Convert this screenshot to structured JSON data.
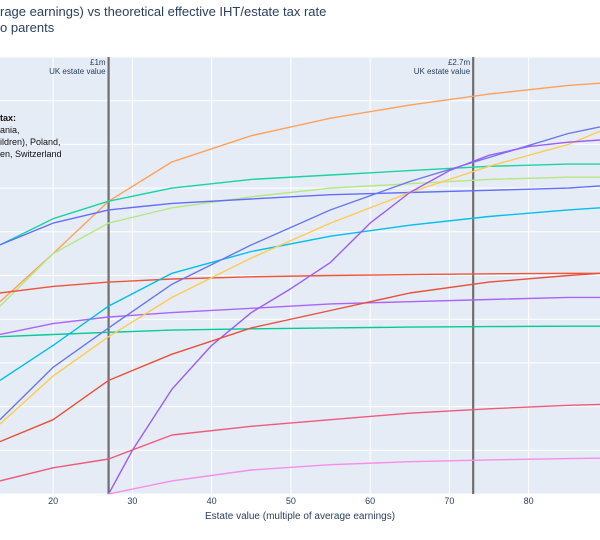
{
  "header": {
    "title_line1": "rage earnings) vs theoretical effective IHT/estate tax rate",
    "title_line2": "o parents"
  },
  "note": {
    "heading": "tax:",
    "line1": "ania,",
    "line2": "ildren), Poland,",
    "line3": "en, Switzerland"
  },
  "chart_data": {
    "type": "line",
    "xlabel": "Estate value (multiple of average earnings)",
    "ylabel": "",
    "xlim": [
      13.3,
      89
    ],
    "ylim": [
      0,
      100
    ],
    "x_ticks": [
      20,
      30,
      40,
      50,
      60,
      70,
      80
    ],
    "grid": true,
    "plot_bg": "#e5ecf6",
    "reference_lines": [
      {
        "x": 27,
        "label_line1": "£1m",
        "label_line2": "UK estate value",
        "color": "#6e6e6e"
      },
      {
        "x": 73,
        "label_line1": "£2.7m",
        "label_line2": "UK estate value",
        "color": "#6e6e6e"
      }
    ],
    "series": [
      {
        "color": "#ffa15a",
        "x": [
          13.3,
          20,
          27,
          35,
          45,
          55,
          65,
          75,
          85,
          89
        ],
        "values": [
          44,
          55,
          67,
          76,
          82,
          86,
          89,
          91.5,
          93.5,
          94
        ]
      },
      {
        "color": "#19d3a2",
        "x": [
          13.3,
          20,
          27,
          35,
          45,
          55,
          65,
          75,
          85,
          89
        ],
        "values": [
          57,
          63,
          67,
          70,
          72,
          73,
          74,
          75,
          75.5,
          75.5
        ]
      },
      {
        "color": "#b6e880",
        "x": [
          13.3,
          20,
          27,
          35,
          45,
          55,
          65,
          75,
          85,
          89
        ],
        "values": [
          43,
          55,
          62,
          65.5,
          68,
          70,
          71,
          72,
          72.5,
          72.5
        ]
      },
      {
        "color": "#636efa",
        "x": [
          13.3,
          20,
          27,
          35,
          45,
          55,
          65,
          75,
          85,
          89
        ],
        "values": [
          57,
          62,
          65,
          66.5,
          67.5,
          68.5,
          69,
          69.5,
          70,
          70.5
        ]
      },
      {
        "color": "#00cc96",
        "x": [
          13.3,
          20,
          27,
          35,
          45,
          55,
          65,
          75,
          85,
          89
        ],
        "values": [
          36,
          36.5,
          37,
          37.5,
          37.8,
          38,
          38.2,
          38.3,
          38.4,
          38.4
        ]
      },
      {
        "color": "#ef553b",
        "x": [
          13.3,
          20,
          27,
          35,
          45,
          55,
          65,
          75,
          85,
          89
        ],
        "values": [
          46,
          47.5,
          48.5,
          49.2,
          49.7,
          50,
          50.2,
          50.4,
          50.5,
          50.5
        ]
      },
      {
        "color": "#ab63fa",
        "x": [
          13.3,
          20,
          27,
          35,
          45,
          55,
          65,
          75,
          85,
          89
        ],
        "values": [
          36.5,
          39,
          40.5,
          41.5,
          42.5,
          43.5,
          44,
          44.5,
          45,
          45
        ]
      },
      {
        "color": "#00bfe8",
        "x": [
          13.3,
          20,
          27,
          35,
          45,
          55,
          65,
          75,
          85,
          89
        ],
        "values": [
          26,
          34,
          43,
          50.5,
          55.5,
          59,
          61.5,
          63.5,
          65,
          65.5
        ]
      },
      {
        "color": "#fecb52",
        "x": [
          13.3,
          20,
          27,
          35,
          45,
          55,
          65,
          75,
          85,
          89
        ],
        "values": [
          16,
          27,
          36,
          45,
          54,
          62,
          69,
          75,
          80,
          83
        ]
      },
      {
        "color": "#6b77e8",
        "x": [
          13.3,
          20,
          27,
          35,
          45,
          55,
          65,
          75,
          85,
          89
        ],
        "values": [
          17,
          29,
          38,
          48,
          57,
          65,
          71.5,
          77,
          82.5,
          84
        ]
      },
      {
        "color": "#9d5cf7",
        "x": [
          27,
          30,
          35,
          40,
          45,
          50,
          55,
          60,
          65,
          70,
          75,
          80,
          85,
          89
        ],
        "values": [
          0,
          10,
          24,
          34,
          41.5,
          47,
          53,
          62,
          69,
          74,
          77.5,
          79.5,
          80.5,
          81
        ]
      },
      {
        "color": "#e8503a",
        "x": [
          13.3,
          20,
          27,
          35,
          45,
          55,
          65,
          75,
          85,
          89
        ],
        "values": [
          12,
          17,
          26,
          32,
          38,
          42,
          46,
          48.5,
          50,
          50.5
        ]
      },
      {
        "color": "#ef5a7a",
        "x": [
          13.3,
          20,
          27,
          35,
          45,
          55,
          65,
          75,
          85,
          89
        ],
        "values": [
          3,
          6,
          8,
          13.5,
          15.5,
          17,
          18.5,
          19.5,
          20.3,
          20.5
        ]
      },
      {
        "color": "#f58ee8",
        "x": [
          27,
          35,
          45,
          55,
          65,
          75,
          85,
          89
        ],
        "values": [
          0,
          3,
          5.5,
          6.7,
          7.4,
          7.8,
          8.1,
          8.2
        ]
      }
    ]
  }
}
